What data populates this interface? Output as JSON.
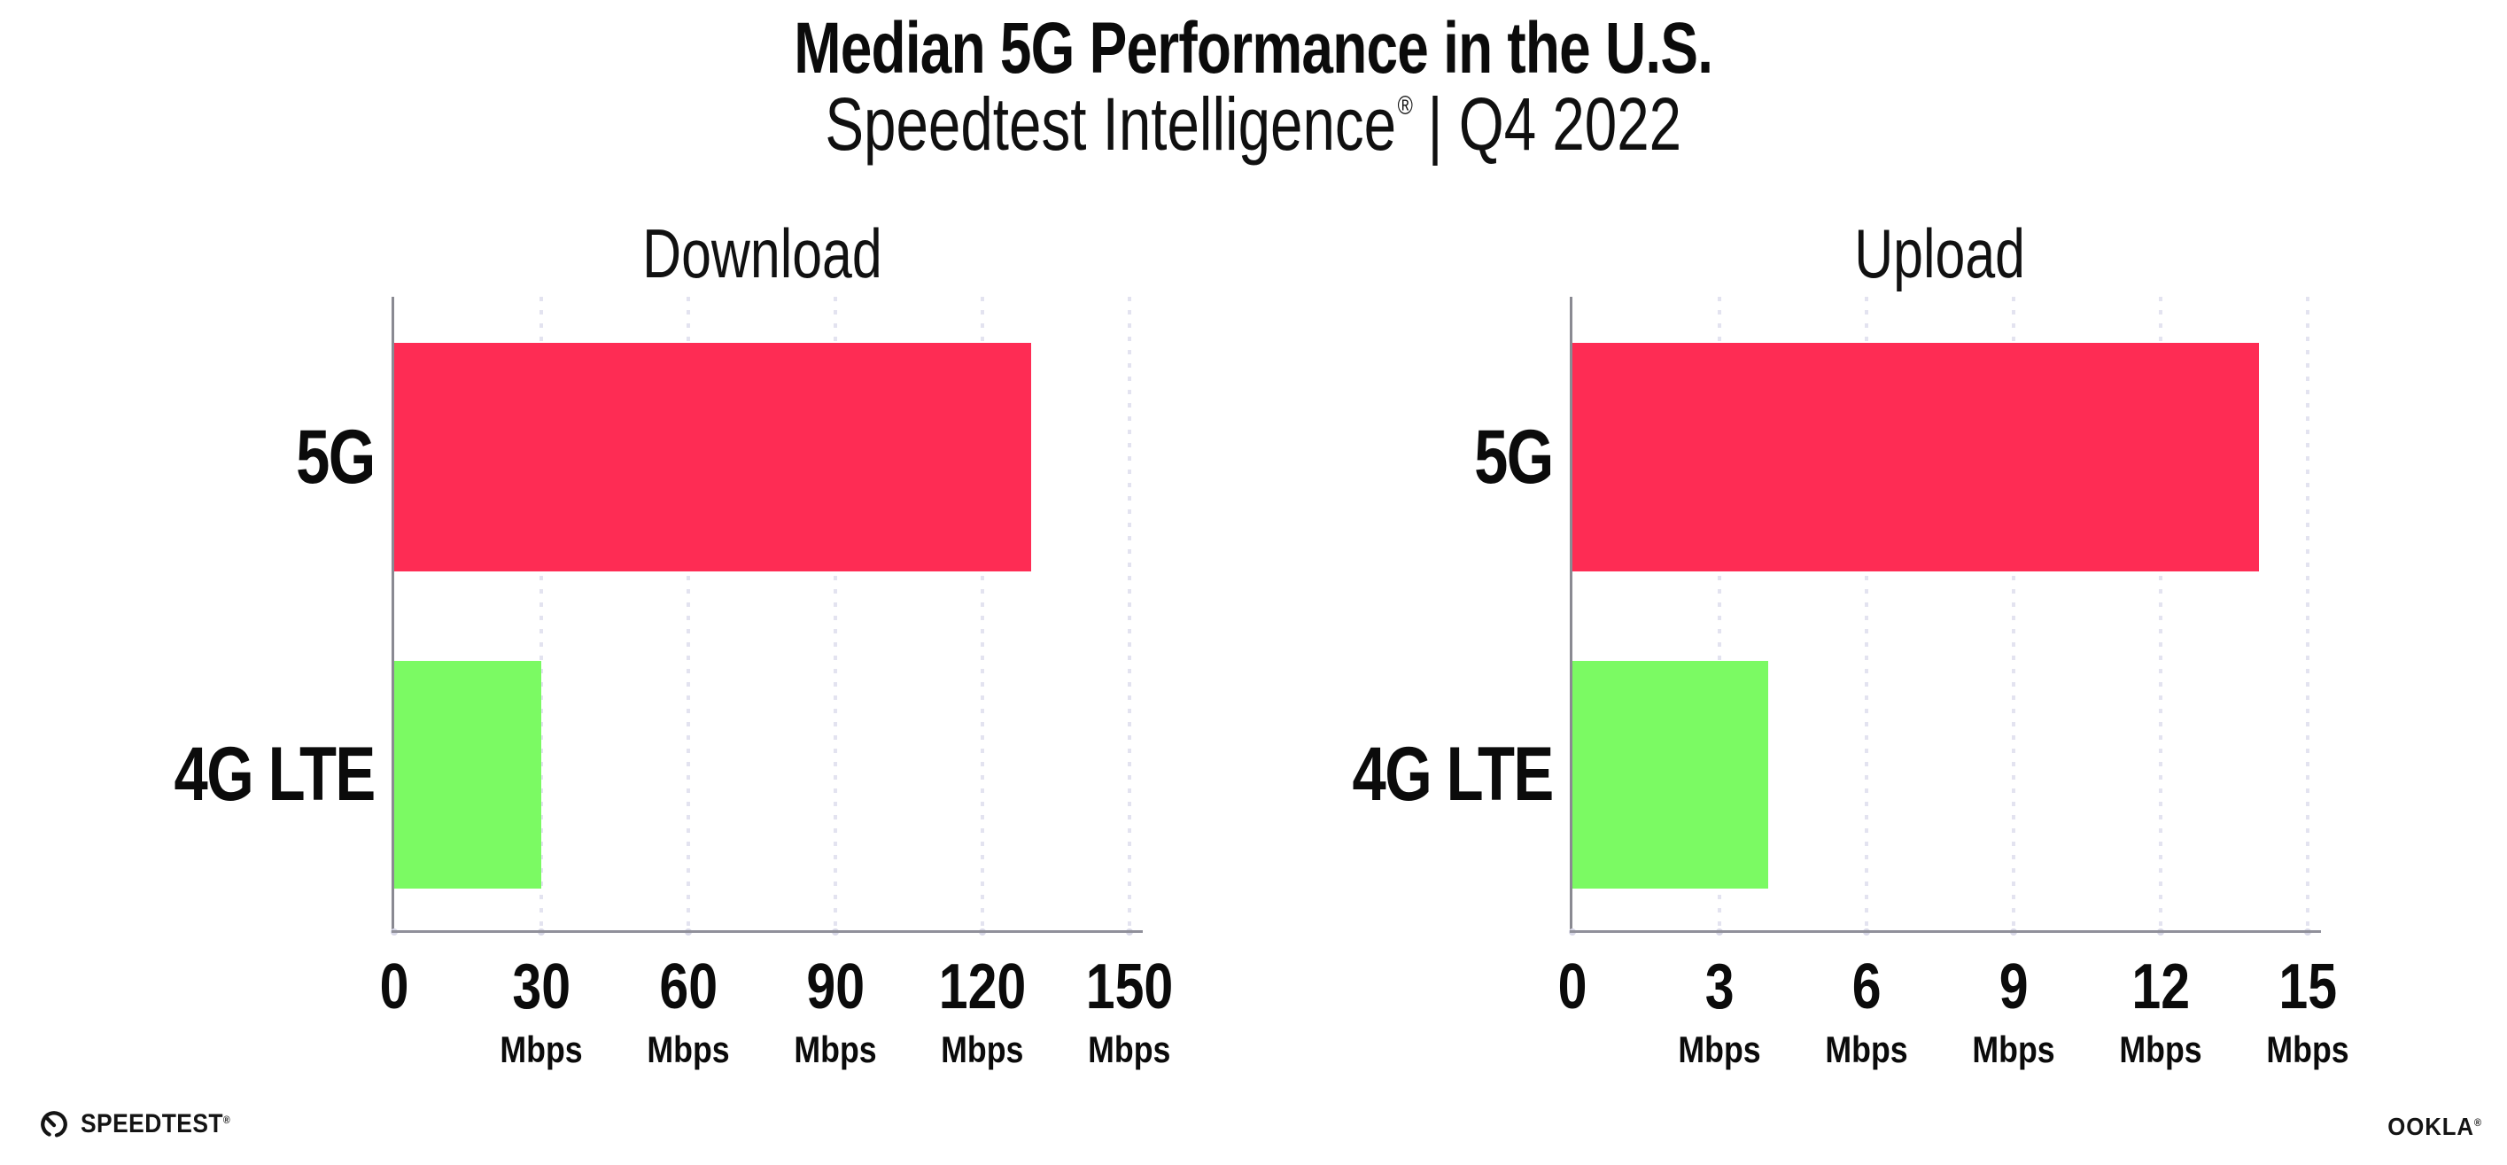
{
  "header": {
    "title": "Median 5G Performance in the U.S.",
    "subtitle_brand": "Speedtest Intelligence",
    "subtitle_reg": "®",
    "subtitle_rest": " | Q4 2022"
  },
  "footer": {
    "speedtest_logo_text": "SPEEDTEST",
    "speedtest_reg": "®",
    "ookla_logo_text": "OOKLA",
    "ookla_reg": "®"
  },
  "colors": {
    "bar_5g": "#fe2c54",
    "bar_4g_lte": "#7bfa63",
    "grid_dot": "#e3e3f0",
    "axis_line": "#90909a",
    "text": "#0b0b0b"
  },
  "chart_data": [
    {
      "type": "bar",
      "orientation": "horizontal",
      "title": "Download",
      "categories": [
        "5G",
        "4G LTE"
      ],
      "values": [
        130,
        30
      ],
      "unit": "Mbps",
      "xlim": [
        0,
        150
      ],
      "xticks": [
        0,
        30,
        60,
        90,
        120,
        150
      ],
      "xtick_unit_label": "Mbps",
      "bar_colors": [
        "#fe2c54",
        "#7bfa63"
      ],
      "grid": "dotted-vertical",
      "legend": "none"
    },
    {
      "type": "bar",
      "orientation": "horizontal",
      "title": "Upload",
      "categories": [
        "5G",
        "4G LTE"
      ],
      "values": [
        14,
        4
      ],
      "unit": "Mbps",
      "xlim": [
        0,
        15
      ],
      "xticks": [
        0,
        3,
        6,
        9,
        12,
        15
      ],
      "xtick_unit_label": "Mbps",
      "bar_colors": [
        "#fe2c54",
        "#7bfa63"
      ],
      "grid": "dotted-vertical",
      "legend": "none"
    }
  ]
}
